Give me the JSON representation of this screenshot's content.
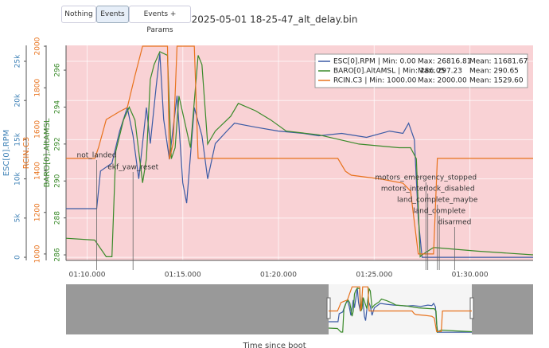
{
  "buttons": [
    "Nothing",
    "Events",
    "Events + Params"
  ],
  "chart_data": {
    "type": "line",
    "title": "2025-05-01 18-25-47_alt_delay.bin",
    "x_label": "Time since boot",
    "xlim": [
      68.9,
      93.3
    ],
    "xticks": [
      {
        "value": 70,
        "label": "01:10.000"
      },
      {
        "value": 75,
        "label": "01:15.000"
      },
      {
        "value": 80,
        "label": "01:20.000"
      },
      {
        "value": 85,
        "label": "01:25.000"
      },
      {
        "value": 90,
        "label": "01:30.000"
      }
    ],
    "y_label": "ESC[0].RPM",
    "ylim": [
      -400,
      27030
    ],
    "yticks": [
      0,
      {
        "value": 5000,
        "label": "5k"
      },
      {
        "value": 10000,
        "label": "10k"
      },
      {
        "value": 15000,
        "label": "15k"
      },
      {
        "value": 20000,
        "label": "20k"
      },
      {
        "value": 25000,
        "label": "25k"
      }
    ],
    "y2_label": "RCIN.C3",
    "y2lim": [
      969,
      2004
    ],
    "y2ticks": [
      1000,
      1200,
      1400,
      1600,
      1800,
      2000
    ],
    "y3_label": "BARO[0].AltAMSL",
    "y3lim": [
      285.7,
      297.34
    ],
    "y3ticks": [
      286,
      288,
      290,
      292,
      294,
      296
    ],
    "grid": true,
    "series": [
      {
        "name": "ESC[0].RPM",
        "color": "#3b5ba5",
        "axis": "y",
        "legend_stats": [
          "| Min: 0.00",
          "Max: 26816.81",
          "Mean: 11681.67"
        ],
        "x": [
          68.9,
          70.5,
          70.7,
          71.3,
          71.7,
          72.1,
          72.4,
          72.7,
          73.1,
          73.3,
          73.6,
          73.8,
          74.0,
          74.3,
          74.7,
          75.0,
          75.2,
          75.6,
          76.0,
          76.3,
          76.7,
          77.3,
          77.7,
          78.8,
          80.0,
          81.3,
          82.1,
          83.3,
          84.6,
          85.8,
          86.5,
          86.8,
          87.1,
          87.3,
          87.5,
          88.1,
          93.3
        ],
        "values": [
          6200,
          6200,
          11000,
          12000,
          16100,
          19100,
          15500,
          10000,
          19100,
          14500,
          21600,
          26000,
          17600,
          12500,
          20600,
          9500,
          6900,
          19100,
          15500,
          10000,
          14500,
          16100,
          17100,
          16600,
          16100,
          15800,
          15500,
          15800,
          15300,
          16100,
          15800,
          17100,
          15000,
          4900,
          0,
          0,
          0
        ]
      },
      {
        "name": "BARO[0].AltAMSL",
        "color": "#3a8a2a",
        "axis": "y3",
        "legend_stats": [
          "| Min: 286.05",
          "Max: 297.23",
          "Mean: 290.65"
        ],
        "x": [
          68.9,
          70.4,
          71.0,
          71.3,
          71.5,
          71.9,
          72.2,
          72.5,
          72.9,
          73.1,
          73.3,
          73.5,
          73.8,
          74.2,
          74.4,
          74.6,
          74.8,
          75.4,
          75.8,
          76.0,
          76.3,
          76.7,
          77.5,
          77.9,
          78.8,
          79.6,
          80.4,
          82.1,
          84.2,
          86.3,
          86.9,
          87.2,
          87.4,
          87.5,
          88.1,
          90.4,
          93.3
        ],
        "values": [
          286.9,
          286.8,
          285.9,
          285.9,
          291.6,
          293.3,
          294.0,
          293.3,
          289.9,
          291.2,
          295.5,
          296.3,
          297.0,
          296.8,
          291.2,
          291.8,
          294.6,
          291.8,
          296.8,
          296.3,
          292.0,
          292.7,
          293.5,
          294.2,
          293.8,
          293.3,
          292.7,
          292.5,
          292.0,
          291.8,
          291.8,
          291.2,
          285.9,
          286.0,
          286.4,
          286.2,
          286.0
        ]
      },
      {
        "name": "RCIN.C3",
        "color": "#e8721c",
        "axis": "y2",
        "legend_stats": [
          "| Min: 1000.00",
          "Max: 2000.00",
          "Mean: 1529.60"
        ],
        "x": [
          68.9,
          70.4,
          70.6,
          71.0,
          71.7,
          72.1,
          72.5,
          72.9,
          74.2,
          74.3,
          74.5,
          74.7,
          75.6,
          75.8,
          83.1,
          83.5,
          83.8,
          85.4,
          86.5,
          86.9,
          87.3,
          88.1,
          88.3,
          93.3
        ],
        "values": [
          1460,
          1460,
          1513,
          1647,
          1686,
          1705,
          1858,
          2000,
          2000,
          1456,
          1533,
          2000,
          2000,
          1460,
          1460,
          1398,
          1379,
          1360,
          1341,
          1303,
          1000,
          1000,
          1460,
          1460
        ]
      }
    ],
    "events": [
      {
        "label": "not_landed",
        "x": 70.5
      },
      {
        "label": "ekf_yaw_reset",
        "x": 72.4
      },
      {
        "label": "motors_emergency_stopped",
        "x": 87.7
      },
      {
        "label": "motors_interlock_disabled",
        "x": 87.8
      },
      {
        "label": "land_complete_maybe",
        "x": 88.3
      },
      {
        "label": "land_complete",
        "x": 88.4
      },
      {
        "label": "disarmed",
        "x": 89.2
      }
    ]
  }
}
